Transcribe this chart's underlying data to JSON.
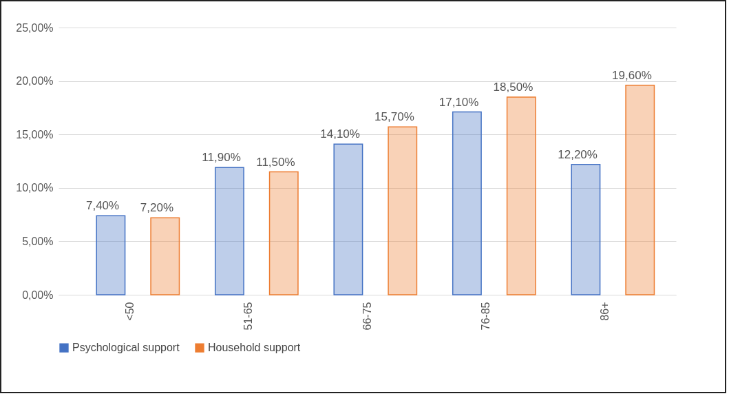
{
  "chart_data": {
    "type": "bar",
    "categories": [
      "<50",
      "51-65",
      "66-75",
      "76-85",
      "86+"
    ],
    "series": [
      {
        "name": "Psychological support",
        "color": "#4472c4",
        "values": [
          7.4,
          11.9,
          14.1,
          17.1,
          12.2
        ],
        "value_labels": [
          "7,40%",
          "11,90%",
          "14,10%",
          "17,10%",
          "12,20%"
        ]
      },
      {
        "name": "Household support",
        "color": "#ed7d31",
        "values": [
          7.2,
          11.5,
          15.7,
          18.5,
          19.6
        ],
        "value_labels": [
          "7,20%",
          "11,50%",
          "15,70%",
          "18,50%",
          "19,60%"
        ]
      }
    ],
    "ylim": [
      0,
      25
    ],
    "yticks": [
      {
        "value": 0,
        "label": "0,00%"
      },
      {
        "value": 5,
        "label": "5,00%"
      },
      {
        "value": 10,
        "label": "10,00%"
      },
      {
        "value": 15,
        "label": "15,00%"
      },
      {
        "value": 20,
        "label": "20,00%"
      },
      {
        "value": 25,
        "label": "25,00%"
      }
    ],
    "grid": "y",
    "legend": "bottom"
  }
}
